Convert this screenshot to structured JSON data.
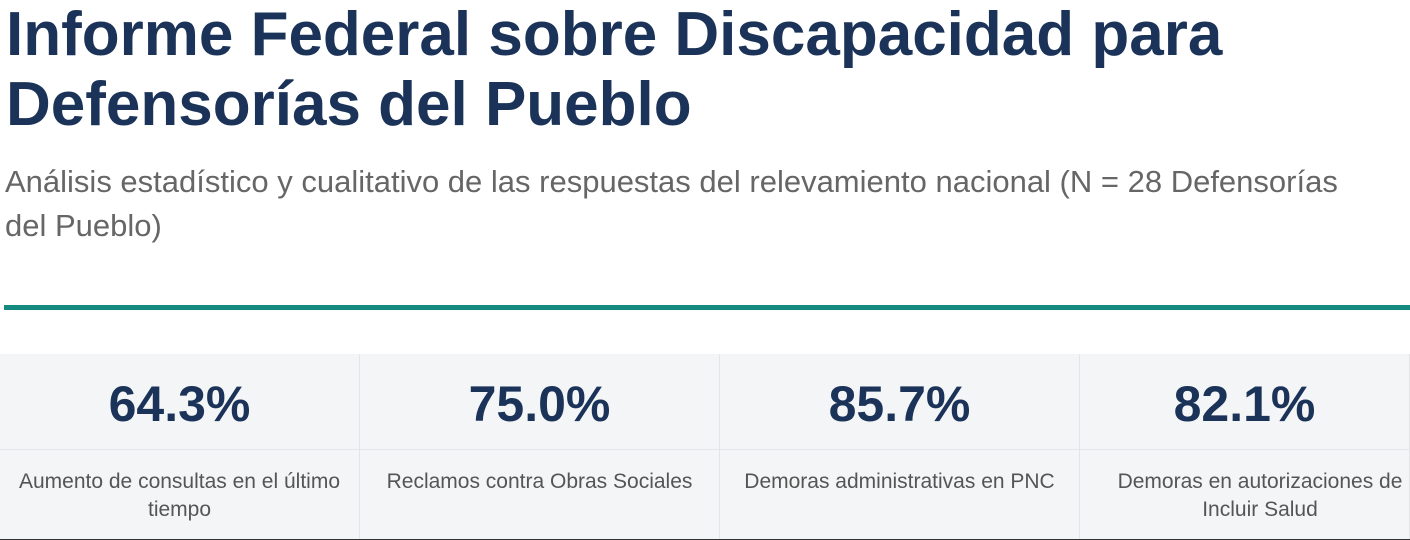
{
  "header": {
    "title": "Informe Federal sobre Discapacidad para Defensorías del Pueblo",
    "subtitle": "Análisis estadístico y cualitativo de las respuestas del relevamiento nacional (N = 28 Defensorías del Pueblo)"
  },
  "stats": [
    {
      "value": "64.3%",
      "label": "Aumento de consultas en el último tiempo"
    },
    {
      "value": "75.0%",
      "label": "Reclamos contra Obras Sociales"
    },
    {
      "value": "85.7%",
      "label": "Demoras administrativas en PNC"
    },
    {
      "value": "82.1%",
      "label": "Demoras en autorizaciones de Incluir Salud"
    }
  ]
}
